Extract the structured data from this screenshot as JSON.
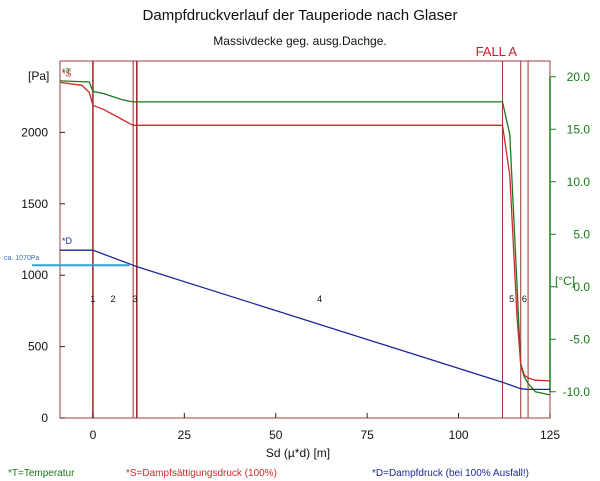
{
  "chart_data": {
    "type": "line",
    "title": "Dampfdruckverlauf der Tauperiode nach Glaser",
    "subtitle": "Massivdecke geg. ausg.Dachge.",
    "case_label": "FALL A",
    "xlabel": "Sd (µ*d) [m]",
    "y_left_unit": "[Pa]",
    "y_right_unit": "[°C]",
    "xlim": [
      -9,
      125
    ],
    "ylim_left": [
      0,
      2500
    ],
    "ylim_right": [
      -12.5,
      21.5
    ],
    "x_ticks": [
      0,
      25,
      50,
      75,
      100,
      125
    ],
    "y_left_ticks": [
      0,
      500,
      1000,
      1500,
      2000
    ],
    "y_right_ticks": [
      20.0,
      15.0,
      10.0,
      5.0,
      0.0,
      -5.0,
      -10.0
    ],
    "layer_boundaries": [
      0,
      11,
      12,
      112,
      117,
      119
    ],
    "layer_labels": [
      {
        "text": "1",
        "x": 0
      },
      {
        "text": "2",
        "x": 5.5
      },
      {
        "text": "3",
        "x": 11.5
      },
      {
        "text": "4",
        "x": 62
      },
      {
        "text": "5",
        "x": 114.5
      },
      {
        "text": "6",
        "x": 118
      }
    ],
    "marker": {
      "label": "ca. 1070Pa",
      "y": 1070,
      "x_end": 10
    },
    "series": [
      {
        "name": "*T",
        "axis": "right",
        "color": "#1a7a1a",
        "x": [
          -9,
          -1,
          0,
          3,
          8,
          11,
          12,
          112,
          114,
          116,
          117,
          118,
          119,
          121,
          125
        ],
        "y": [
          19.6,
          19.5,
          18.6,
          18.4,
          17.8,
          17.6,
          17.6,
          17.6,
          14.5,
          0.0,
          -7.5,
          -8.6,
          -9.2,
          -10.0,
          -10.3
        ]
      },
      {
        "name": "*S",
        "axis": "left",
        "color": "#cc2a2a",
        "x": [
          -9,
          -3,
          -1,
          0,
          3,
          8,
          11,
          12,
          112,
          114,
          116,
          117,
          118,
          119,
          121,
          125
        ],
        "y": [
          2350,
          2330,
          2280,
          2190,
          2160,
          2090,
          2050,
          2050,
          2050,
          1700,
          700,
          380,
          300,
          280,
          265,
          260
        ]
      },
      {
        "name": "*D",
        "axis": "left",
        "color": "#1a2a9a",
        "x": [
          -9,
          0,
          11,
          12,
          112,
          117,
          119,
          125
        ],
        "y": [
          1175,
          1175,
          1070,
          1060,
          250,
          205,
          200,
          200
        ]
      }
    ],
    "legend": [
      {
        "text": "*T=Temperatur",
        "color": "#1a7a1a"
      },
      {
        "text": "*S=Dampfsättigungsdruck (100%)",
        "color": "#cc2a2a"
      },
      {
        "text": "*D=Dampfdruck (bei 100% Ausfall!)",
        "color": "#1a2a9a"
      }
    ]
  }
}
